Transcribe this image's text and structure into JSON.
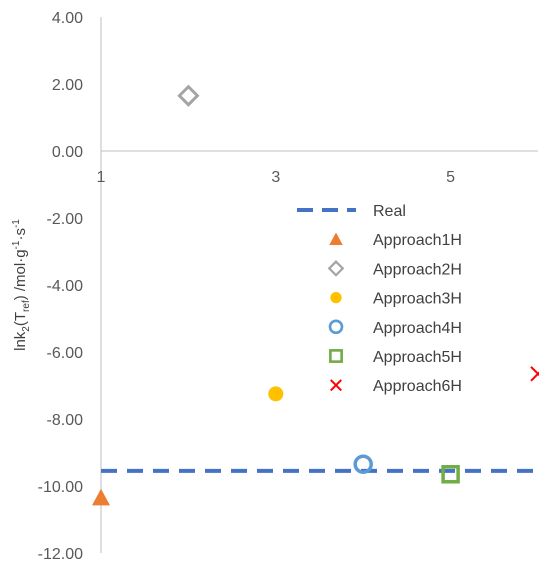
{
  "chart_data": {
    "type": "scatter",
    "title": "",
    "xlabel": "",
    "ylabel": {
      "parts": [
        "lnk",
        "2",
        "(T",
        "ref",
        ") /mol·g",
        "-1",
        "·s",
        "-1"
      ]
    },
    "xlim": [
      1,
      6
    ],
    "ylim": [
      -12,
      4
    ],
    "x_ticks": [
      1,
      3,
      5
    ],
    "x_tick_labels": [
      "1",
      "3",
      "5"
    ],
    "y_ticks": [
      4,
      2,
      0,
      -2,
      -4,
      -6,
      -8,
      -10,
      -12
    ],
    "y_tick_labels": [
      "4.00",
      "2.00",
      "0.00",
      "-2.00",
      "-4.00",
      "-6.00",
      "-8.00",
      "-10.00",
      "-12.00"
    ],
    "grid": false,
    "legend_position": "right",
    "series": [
      {
        "name": "Real",
        "kind": "line",
        "style": "dashed",
        "color": "#4472C4",
        "y": -9.55
      },
      {
        "name": "Approach1H",
        "marker": "triangle",
        "color": "#ED7D31",
        "points": [
          [
            1,
            -10.35
          ]
        ]
      },
      {
        "name": "Approach2H",
        "marker": "diamond",
        "color": "#A5A5A5",
        "points": [
          [
            2,
            1.65
          ]
        ]
      },
      {
        "name": "Approach3H",
        "marker": "circle-filled",
        "color": "#FFC000",
        "points": [
          [
            3,
            -7.25
          ]
        ]
      },
      {
        "name": "Approach4H",
        "marker": "circle-open",
        "color": "#5B9BD5",
        "points": [
          [
            4,
            -9.35
          ]
        ]
      },
      {
        "name": "Approach5H",
        "marker": "square-open",
        "color": "#70AD47",
        "points": [
          [
            5,
            -9.65
          ]
        ]
      },
      {
        "name": "Approach6H",
        "marker": "x",
        "color": "#FF0000",
        "points": [
          [
            6,
            -6.65
          ]
        ]
      }
    ]
  }
}
